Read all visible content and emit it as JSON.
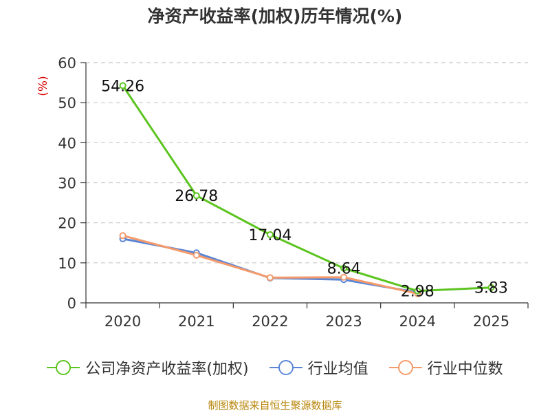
{
  "chart_data": {
    "type": "line",
    "title": "净资产收益率(加权)历年情况(%)",
    "ylabel": "(%)",
    "xlabel": "",
    "categories": [
      "2020",
      "2021",
      "2022",
      "2023",
      "2024",
      "2025"
    ],
    "ylim": [
      0,
      60
    ],
    "yticks": [
      0,
      10,
      20,
      30,
      40,
      50,
      60
    ],
    "grid": true,
    "legend_position": "bottom",
    "series": [
      {
        "name": "公司净资产收益率(加权)",
        "color": "#5cc41f",
        "values": [
          54.26,
          26.78,
          17.04,
          8.64,
          2.98,
          3.83
        ],
        "labels": [
          "54.26",
          "26.78",
          "17.04",
          "8.64",
          "2.98",
          "3.83"
        ]
      },
      {
        "name": "行业均值",
        "color": "#5b86d6",
        "values": [
          16.0,
          12.5,
          6.2,
          5.8,
          2.6,
          null
        ]
      },
      {
        "name": "行业中位数",
        "color": "#f59a6b",
        "values": [
          16.8,
          11.9,
          6.3,
          6.4,
          2.3,
          null
        ]
      }
    ]
  },
  "source": "制图数据来自恒生聚源数据库"
}
